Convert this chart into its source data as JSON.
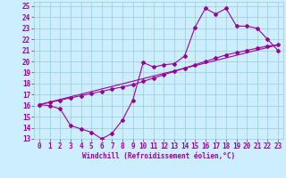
{
  "xlabel": "Windchill (Refroidissement éolien,°C)",
  "bg_color": "#cceeff",
  "grid_color": "#99cccc",
  "line_color": "#990099",
  "xlim": [
    -0.5,
    23.5
  ],
  "ylim": [
    13,
    25.4
  ],
  "xticks": [
    0,
    1,
    2,
    3,
    4,
    5,
    6,
    7,
    8,
    9,
    10,
    11,
    12,
    13,
    14,
    15,
    16,
    17,
    18,
    19,
    20,
    21,
    22,
    23
  ],
  "yticks": [
    13,
    14,
    15,
    16,
    17,
    18,
    19,
    20,
    21,
    22,
    23,
    24,
    25
  ],
  "line1_x": [
    0,
    1,
    2,
    3,
    4,
    5,
    6,
    7,
    8,
    9,
    10,
    11,
    12,
    13,
    14,
    15,
    16,
    17,
    18,
    19,
    20,
    21,
    22,
    23
  ],
  "line1_y": [
    16.1,
    16.0,
    15.7,
    14.2,
    13.9,
    13.6,
    13.0,
    13.5,
    14.7,
    16.5,
    19.9,
    19.5,
    19.7,
    19.8,
    20.5,
    23.1,
    24.8,
    24.3,
    24.8,
    23.2,
    23.2,
    23.0,
    22.0,
    21.0
  ],
  "line2_x": [
    0,
    1,
    2,
    3,
    4,
    5,
    6,
    7,
    8,
    9,
    10,
    11,
    12,
    13,
    14,
    15,
    16,
    17,
    18,
    19,
    20,
    21,
    22,
    23
  ],
  "line2_y": [
    16.1,
    16.3,
    16.5,
    16.7,
    16.9,
    17.1,
    17.3,
    17.5,
    17.7,
    17.9,
    18.2,
    18.5,
    18.8,
    19.1,
    19.4,
    19.7,
    20.0,
    20.3,
    20.6,
    20.8,
    21.0,
    21.2,
    21.4,
    21.5
  ],
  "line3_x": [
    0,
    23
  ],
  "line3_y": [
    16.1,
    21.5
  ],
  "marker": "D",
  "markersize": 2.0,
  "linewidth": 0.8,
  "tick_fontsize": 5.5,
  "xlabel_fontsize": 5.5
}
